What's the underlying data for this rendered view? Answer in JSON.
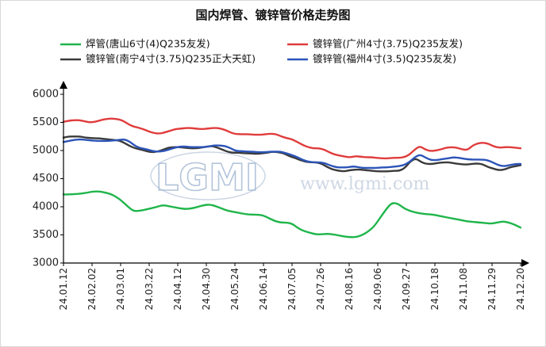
{
  "chart_data": {
    "type": "line",
    "title": "国内焊管、镀锌管价格走势图",
    "ylim": [
      3000,
      6000
    ],
    "yticks": [
      3000,
      3500,
      4000,
      4500,
      5000,
      5500,
      6000
    ],
    "x_tick_labels": [
      "24.01.12",
      "24.02.02",
      "24.03.01",
      "24.03.22",
      "24.04.12",
      "24.04.30",
      "24.05.24",
      "24.06.14",
      "24.07.05",
      "24.07.26",
      "24.08.16",
      "24.09.06",
      "24.09.27",
      "24.10.18",
      "24.11.08",
      "24.11.29",
      "24.12.20"
    ],
    "x_index_range": [
      0,
      100
    ],
    "legend_position": "top",
    "grid": false,
    "watermark": {
      "logo": "LGMI",
      "url": "www.lgmi.com"
    },
    "series": [
      {
        "name": "焊管(唐山6寸(4)Q235友发)",
        "color": "#1fb54a",
        "values": [
          4220,
          4220,
          4225,
          4235,
          4250,
          4270,
          4275,
          4255,
          4230,
          4175,
          4100,
          4000,
          3920,
          3930,
          3950,
          3975,
          4000,
          4030,
          4010,
          3990,
          3970,
          3960,
          3975,
          4000,
          4030,
          4040,
          4010,
          3970,
          3930,
          3910,
          3890,
          3870,
          3860,
          3860,
          3850,
          3800,
          3750,
          3720,
          3720,
          3700,
          3620,
          3570,
          3540,
          3510,
          3510,
          3520,
          3510,
          3490,
          3470,
          3460,
          3460,
          3500,
          3560,
          3650,
          3800,
          3950,
          4070,
          4060,
          3980,
          3930,
          3900,
          3880,
          3870,
          3860,
          3840,
          3820,
          3800,
          3780,
          3760,
          3740,
          3730,
          3720,
          3710,
          3700,
          3720,
          3740,
          3720,
          3680,
          3630
        ],
        "x_start": 0,
        "x_end": 100
      },
      {
        "name": "镀锌管(广州4寸(3.75)Q235友发)",
        "color": "#e03c3c",
        "values": [
          5510,
          5530,
          5540,
          5540,
          5520,
          5500,
          5510,
          5540,
          5560,
          5570,
          5560,
          5540,
          5480,
          5430,
          5410,
          5380,
          5340,
          5310,
          5300,
          5320,
          5350,
          5380,
          5390,
          5400,
          5400,
          5390,
          5380,
          5390,
          5400,
          5400,
          5380,
          5340,
          5300,
          5290,
          5290,
          5290,
          5280,
          5280,
          5290,
          5300,
          5290,
          5250,
          5220,
          5200,
          5150,
          5100,
          5060,
          5040,
          5040,
          5020,
          4970,
          4930,
          4910,
          4890,
          4880,
          4900,
          4890,
          4880,
          4880,
          4870,
          4860,
          4860,
          4870,
          4870,
          4880,
          4920,
          5010,
          5080,
          5020,
          4990,
          5000,
          5020,
          5050,
          5060,
          5050,
          5020,
          5010,
          5090,
          5130,
          5140,
          5120,
          5070,
          5050,
          5060,
          5060,
          5050,
          5040
        ],
        "x_start": 0,
        "x_end": 100
      },
      {
        "name": "镀锌管(南宁4寸(3.75)Q235正大天虹)",
        "color": "#3a3a3a",
        "values": [
          5230,
          5250,
          5250,
          5250,
          5230,
          5220,
          5220,
          5210,
          5200,
          5190,
          5180,
          5140,
          5080,
          5040,
          5020,
          4990,
          4970,
          4980,
          5010,
          5050,
          5060,
          5060,
          5050,
          5040,
          5040,
          5050,
          5070,
          5080,
          5050,
          5010,
          4970,
          4960,
          4960,
          4950,
          4950,
          4940,
          4950,
          4960,
          4980,
          4970,
          4950,
          4900,
          4870,
          4830,
          4800,
          4790,
          4790,
          4760,
          4700,
          4660,
          4640,
          4630,
          4650,
          4660,
          4660,
          4650,
          4640,
          4630,
          4630,
          4630,
          4640,
          4640,
          4690,
          4810,
          4860,
          4790,
          4760,
          4760,
          4780,
          4790,
          4790,
          4770,
          4760,
          4750,
          4760,
          4770,
          4760,
          4710,
          4680,
          4650,
          4660,
          4700,
          4720,
          4740
        ],
        "x_start": 0,
        "x_end": 100
      },
      {
        "name": "镀锌管(福州4寸(3.5)Q235友发)",
        "color": "#2c54b8",
        "values": [
          5150,
          5170,
          5190,
          5200,
          5190,
          5180,
          5170,
          5170,
          5170,
          5180,
          5190,
          5200,
          5150,
          5070,
          5040,
          5020,
          4990,
          4980,
          4990,
          5020,
          5050,
          5070,
          5070,
          5060,
          5060,
          5060,
          5070,
          5090,
          5090,
          5080,
          5040,
          4990,
          4990,
          4980,
          4980,
          4970,
          4970,
          4980,
          4980,
          4980,
          4950,
          4920,
          4880,
          4830,
          4800,
          4790,
          4790,
          4770,
          4730,
          4700,
          4700,
          4700,
          4720,
          4700,
          4690,
          4690,
          4690,
          4700,
          4700,
          4710,
          4720,
          4740,
          4790,
          4880,
          4930,
          4870,
          4830,
          4830,
          4850,
          4860,
          4880,
          4870,
          4850,
          4840,
          4840,
          4840,
          4830,
          4790,
          4740,
          4720,
          4740,
          4760,
          4760
        ],
        "x_start": 0,
        "x_end": 100
      }
    ]
  }
}
